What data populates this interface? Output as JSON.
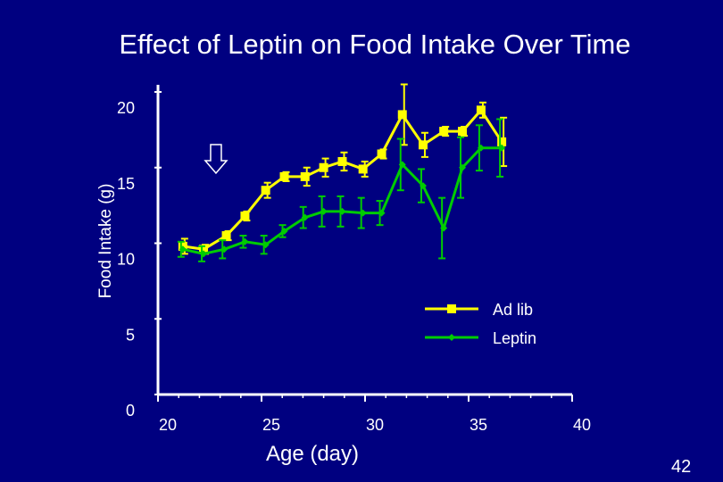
{
  "slide": {
    "title": "Effect of Leptin on Food Intake Over Time",
    "page_number": "42"
  },
  "colors": {
    "background": "#000080",
    "ad_lib": "#ffff00",
    "leptin": "#00cc00",
    "axis": "#ffffff",
    "text": "#ffffff",
    "error_bar": "#000000"
  },
  "annotation": {
    "icon": "down-arrow-icon",
    "x": 22.8
  },
  "chart_data": {
    "type": "line",
    "title": "",
    "xlabel": "Age (day)",
    "ylabel": "Food Intake (g)",
    "xlim": [
      20,
      40
    ],
    "ylim": [
      0,
      20
    ],
    "x_ticks": [
      20,
      25,
      30,
      35,
      40
    ],
    "y_ticks": [
      0,
      5,
      10,
      15,
      20
    ],
    "x_tick_labels": [
      "20",
      "25",
      "30",
      "35",
      "40"
    ],
    "y_tick_labels": [
      "0",
      "5",
      "10",
      "15",
      "20"
    ],
    "legend_position": "right",
    "series": [
      {
        "name": "Ad lib",
        "marker": "square",
        "x": [
          21.2,
          22.2,
          23.3,
          24.2,
          25.2,
          26.1,
          27.1,
          28.0,
          28.9,
          29.9,
          30.8,
          31.8,
          32.8,
          33.8,
          34.7,
          35.6,
          36.6
        ],
        "y": [
          9.8,
          9.6,
          10.5,
          11.8,
          13.5,
          14.4,
          14.4,
          15.0,
          15.4,
          14.9,
          15.9,
          18.5,
          16.5,
          17.4,
          17.4,
          18.8,
          16.7
        ],
        "err": [
          0.5,
          0.3,
          0.3,
          0.3,
          0.5,
          0.3,
          0.6,
          0.6,
          0.6,
          0.5,
          0.3,
          2.0,
          0.8,
          0.3,
          0.3,
          0.5,
          1.6
        ]
      },
      {
        "name": "Leptin",
        "marker": "diamond",
        "x": [
          21.2,
          22.2,
          23.2,
          24.2,
          25.2,
          26.1,
          27.1,
          28.0,
          28.9,
          29.9,
          30.8,
          31.8,
          32.8,
          33.8,
          34.7,
          35.6,
          36.6
        ],
        "y": [
          9.6,
          9.3,
          9.6,
          10.1,
          9.9,
          10.8,
          11.7,
          12.1,
          12.1,
          12.0,
          12.0,
          15.2,
          13.8,
          11.0,
          15.0,
          16.3,
          16.3
        ],
        "err": [
          0.5,
          0.5,
          0.6,
          0.4,
          0.6,
          0.4,
          0.7,
          1.0,
          1.0,
          1.0,
          0.8,
          1.7,
          1.1,
          2.0,
          2.0,
          1.5,
          1.9
        ]
      }
    ]
  }
}
